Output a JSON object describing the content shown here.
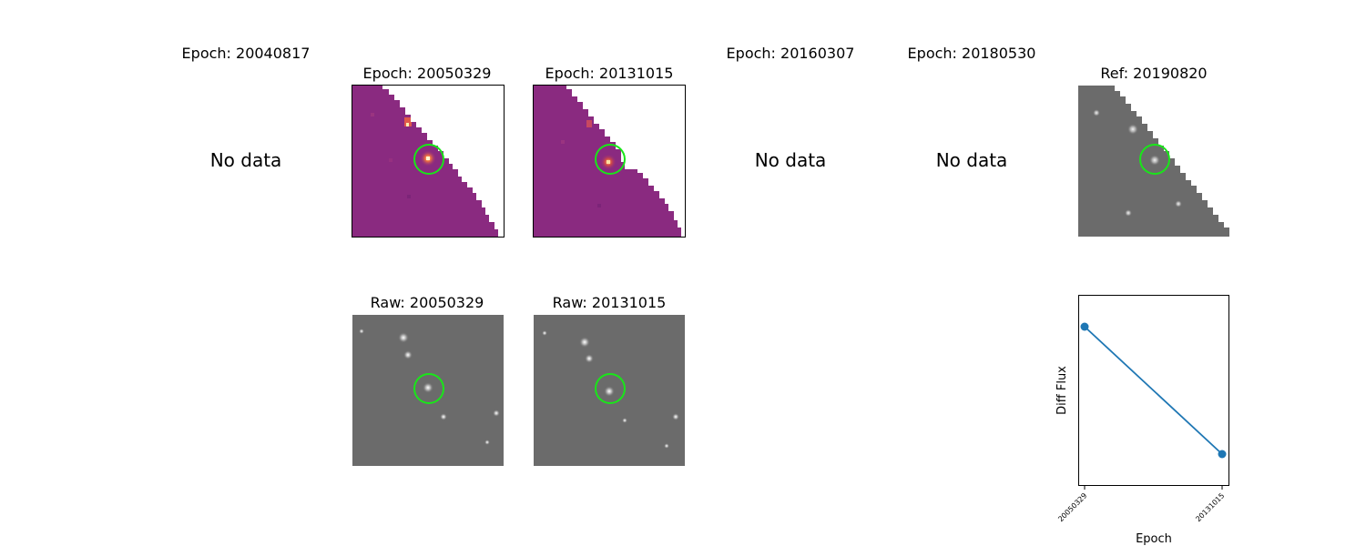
{
  "panels": {
    "epoch_20040817": {
      "title": "Epoch: 20040817",
      "message": "No data"
    },
    "epoch_20050329": {
      "title": "Epoch: 20050329"
    },
    "epoch_20131015": {
      "title": "Epoch: 20131015"
    },
    "epoch_20160307": {
      "title": "Epoch: 20160307",
      "message": "No data"
    },
    "epoch_20180530": {
      "title": "Epoch: 20180530",
      "message": "No data"
    },
    "ref": {
      "title": "Ref: 20190820"
    },
    "raw_20050329": {
      "title": "Raw: 20050329"
    },
    "raw_20131015": {
      "title": "Raw: 20131015"
    }
  },
  "colors": {
    "diff_colormap": "magma",
    "diff_background": "#8a2a80",
    "raw_background": "#6b6b6b",
    "marker_ring": "#19e619",
    "series_line": "#1f77b4"
  },
  "chart_data": {
    "type": "line",
    "title": "",
    "xlabel": "Epoch",
    "ylabel": "Diff Flux",
    "x": [
      "20050329",
      "20131015"
    ],
    "series": [
      {
        "values": [
          0.9,
          0.1
        ],
        "color": "#1f77b4"
      }
    ],
    "yticks_shown": false,
    "grid": false
  }
}
